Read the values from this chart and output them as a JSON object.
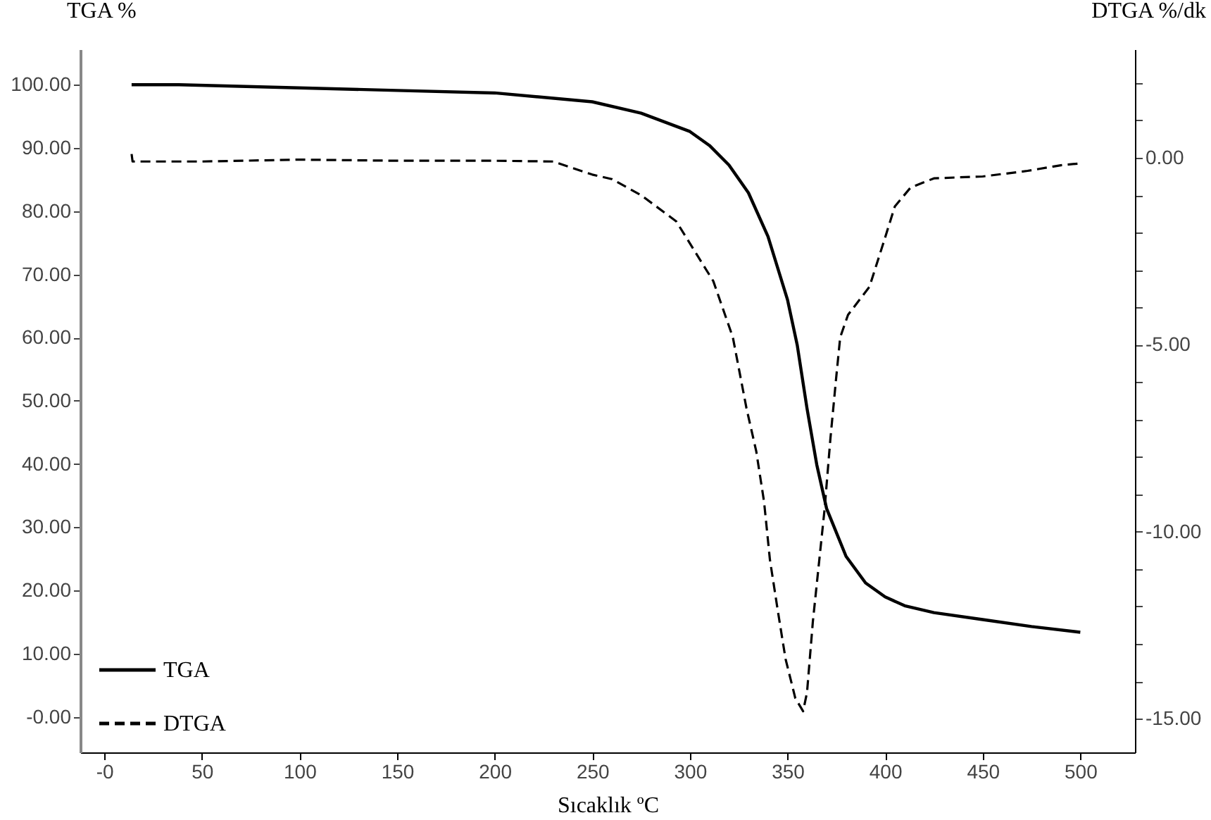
{
  "chart_data": {
    "type": "line",
    "xlabel": "Sıcaklık ºC",
    "ylabel": "TGA %",
    "y2label": "DTGA %/dk",
    "legend": "bottom left",
    "grid": false,
    "xlim": [
      -12.3,
      528
    ],
    "xticks": [
      {
        "value": 0,
        "label": "-0"
      },
      50,
      100,
      150,
      200,
      250,
      300,
      350,
      400,
      450,
      500
    ],
    "ylim": [
      -5.6,
      105.6
    ],
    "yticks": [
      {
        "value": 0,
        "label": "-0.00"
      },
      {
        "value": 10,
        "label": "10.00"
      },
      {
        "value": 20,
        "label": "20.00"
      },
      {
        "value": 30,
        "label": "30.00"
      },
      {
        "value": 40,
        "label": "40.00"
      },
      {
        "value": 50,
        "label": "50.00"
      },
      {
        "value": 60,
        "label": "60.00"
      },
      {
        "value": 70,
        "label": "70.00"
      },
      {
        "value": 80,
        "label": "80.00"
      },
      {
        "value": 90,
        "label": "90.00"
      },
      {
        "value": 100,
        "label": "100.00"
      }
    ],
    "y2lim": [
      -15.9,
      2.9
    ],
    "y2ticks": [
      {
        "value": -15,
        "label": "-15.00"
      },
      {
        "value": -14,
        "label": null
      },
      {
        "value": -13,
        "label": null
      },
      {
        "value": -12,
        "label": null
      },
      {
        "value": -11,
        "label": null
      },
      {
        "value": -10,
        "label": "-10.00"
      },
      {
        "value": -9,
        "label": null
      },
      {
        "value": -8,
        "label": null
      },
      {
        "value": -7,
        "label": null
      },
      {
        "value": -6,
        "label": null
      },
      {
        "value": -5,
        "label": "-5.00"
      },
      {
        "value": -4,
        "label": null
      },
      {
        "value": -3,
        "label": null
      },
      {
        "value": -2,
        "label": null
      },
      {
        "value": -1,
        "label": null
      },
      {
        "value": 0,
        "label": "0.00"
      },
      {
        "value": 1,
        "label": null
      },
      {
        "value": 2,
        "label": null
      }
    ],
    "series": [
      {
        "name": "TGA",
        "color": "#000000",
        "line_style": "solid",
        "x": [
          14,
          38,
          100,
          150,
          200,
          250,
          275,
          300,
          310,
          320,
          330,
          340,
          350,
          355,
          360,
          365,
          370,
          380,
          390,
          400,
          410,
          425,
          450,
          475,
          500
        ],
        "values": [
          100.0,
          100.0,
          99.5,
          99.1,
          98.7,
          97.3,
          95.5,
          92.6,
          90.4,
          87.3,
          82.9,
          76.0,
          66.0,
          58.8,
          48.8,
          39.9,
          33.0,
          25.4,
          21.2,
          19.0,
          17.6,
          16.5,
          15.4,
          14.3,
          13.4
        ]
      },
      {
        "name": "DTGA",
        "color": "#000000",
        "line_style": "dashed",
        "axis": "y2",
        "x": [
          14,
          14.5,
          50,
          100,
          150,
          200,
          230,
          250,
          260,
          275,
          293,
          312,
          322,
          329,
          334,
          338,
          341,
          345,
          349,
          354,
          358,
          360,
          363,
          366,
          369,
          372,
          375,
          377,
          381,
          392,
          399,
          405,
          413,
          425,
          450,
          473,
          490,
          500
        ],
        "values": [
          0.1,
          -0.1,
          -0.1,
          -0.05,
          -0.08,
          -0.08,
          -0.1,
          -0.45,
          -0.57,
          -1.0,
          -1.7,
          -3.3,
          -4.8,
          -6.7,
          -7.85,
          -9.2,
          -10.75,
          -12.1,
          -13.4,
          -14.45,
          -14.8,
          -14.3,
          -12.4,
          -10.9,
          -9.4,
          -7.5,
          -5.85,
          -4.8,
          -4.2,
          -3.45,
          -2.3,
          -1.3,
          -0.8,
          -0.55,
          -0.5,
          -0.35,
          -0.2,
          -0.15
        ]
      }
    ]
  }
}
